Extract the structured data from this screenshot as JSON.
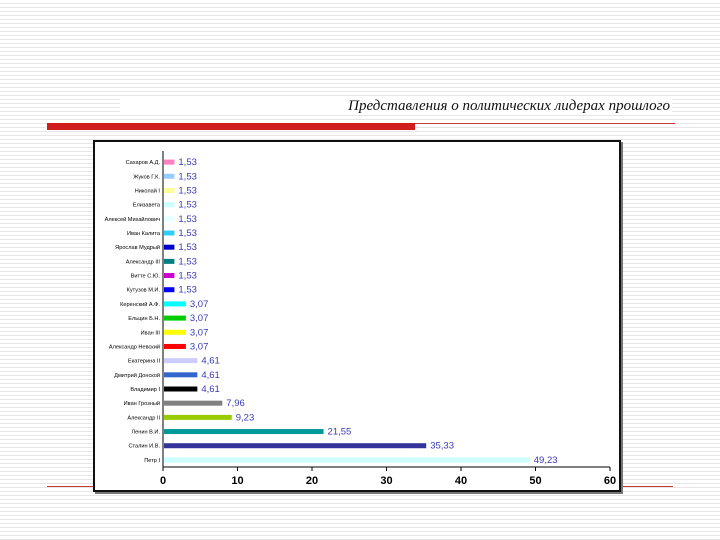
{
  "slide": {
    "title": "Представления о политических лидерах прошлого"
  },
  "chart_data": {
    "type": "bar",
    "orientation": "horizontal",
    "categories": [
      "Сахаров А.Д.",
      "Жуков Г.К.",
      "Николай I",
      "Елизавета",
      "Алексей Михайлович",
      "Иван Калита",
      "Ярослав Мудрый",
      "Александр III",
      "Витте С.Ю.",
      "Кутузов М.И.",
      "Керенский А.Ф.",
      "Ельцин Б.Н.",
      "Иван III",
      "Александр Невский",
      "Екатерина II",
      "Дмитрий Донской",
      "Владимир I",
      "Иван Грозный",
      "Александр II",
      "Ленин В.И.",
      "Сталин И.В.",
      "Петр I"
    ],
    "values": [
      1.53,
      1.53,
      1.53,
      1.53,
      1.53,
      1.53,
      1.53,
      1.53,
      1.53,
      1.53,
      3.07,
      3.07,
      3.07,
      3.07,
      4.61,
      4.61,
      4.61,
      7.96,
      9.23,
      21.55,
      35.33,
      49.23
    ],
    "labels": [
      "1,53",
      "1,53",
      "1,53",
      "1,53",
      "1,53",
      "1,53",
      "1,53",
      "1,53",
      "1,53",
      "1,53",
      "3,07",
      "3,07",
      "3,07",
      "3,07",
      "4,61",
      "4,61",
      "4,61",
      "7,96",
      "9,23",
      "21,55",
      "35,33",
      "49,23"
    ],
    "colors": [
      "#ff80c0",
      "#99ccff",
      "#ffff99",
      "#ccffff",
      "#e6ffff",
      "#33ccff",
      "#0000cc",
      "#008080",
      "#cc00cc",
      "#0000ff",
      "#00ffff",
      "#00cc00",
      "#ffff00",
      "#ff0000",
      "#ccccff",
      "#3366cc",
      "#000000",
      "#808080",
      "#99cc00",
      "#009999",
      "#333399",
      "#ccffff"
    ],
    "label_color": "#3a3ab5",
    "xlim": [
      0,
      60
    ],
    "xticks": [
      "0",
      "10",
      "20",
      "30",
      "40",
      "50",
      "60"
    ],
    "grid": false,
    "legend": "none"
  }
}
